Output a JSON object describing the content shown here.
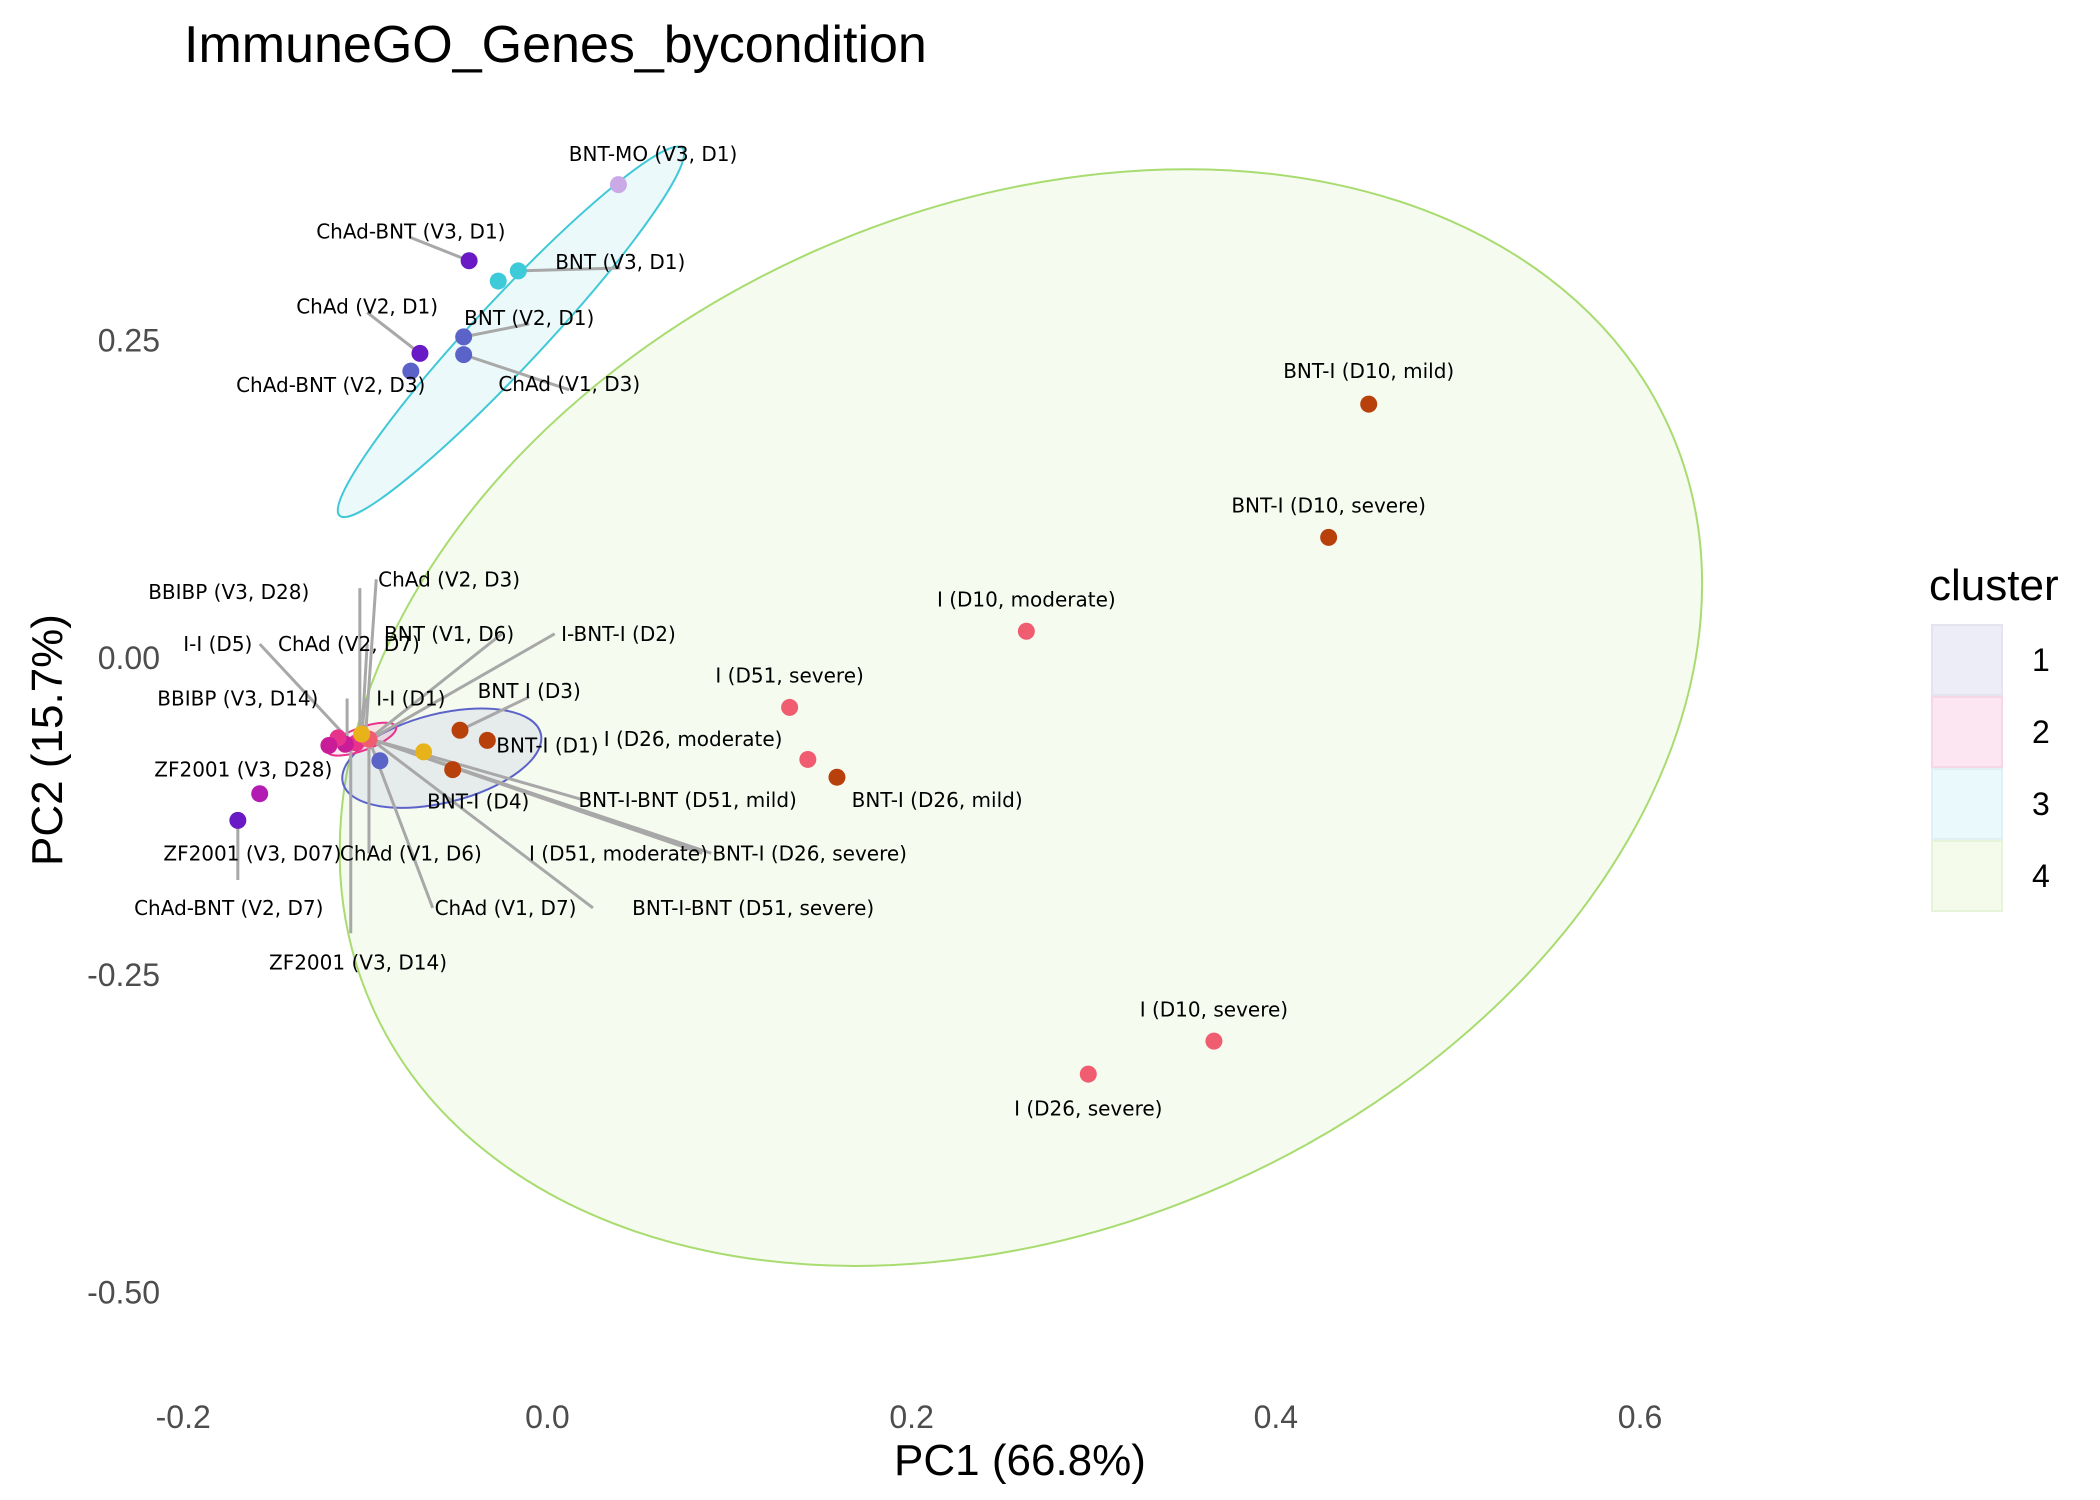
{
  "chart_data": {
    "type": "scatter",
    "title": "ImmuneGO_Genes_bycondition",
    "xlabel": "PC1 (66.8%)",
    "ylabel": "PC2 (15.7%)",
    "xlim": [
      -0.21,
      0.74
    ],
    "ylim": [
      -0.573,
      0.42
    ],
    "x_ticks": [
      -0.2,
      0.0,
      0.2,
      0.4,
      0.6
    ],
    "x_tick_labels": [
      "-0.2",
      "0.0",
      "0.2",
      "0.4",
      "0.6"
    ],
    "y_ticks": [
      -0.5,
      -0.25,
      0.0,
      0.25
    ],
    "y_tick_labels": [
      "-0.50",
      "-0.25",
      "0.00",
      "0.25"
    ],
    "grid": false,
    "legend": {
      "title": "cluster",
      "placement": "right",
      "entries": [
        {
          "label": "1",
          "fill": "#EDEDF7",
          "border": "#E4E4F0"
        },
        {
          "label": "2",
          "fill": "#FCE6F1",
          "border": "#F5D7E6"
        },
        {
          "label": "3",
          "fill": "#EAF9FB",
          "border": "#DFF1F5"
        },
        {
          "label": "4",
          "fill": "#F4FBEB",
          "border": "#E8F3DB"
        }
      ]
    },
    "ellipses": [
      {
        "cluster": "1",
        "cx": -0.058,
        "cy": -0.079,
        "rx": 0.056,
        "ry": 0.035,
        "angle_deg": 14,
        "stroke": "#5B63C9",
        "fill": "#5B63C9"
      },
      {
        "cluster": "2",
        "cx": -0.102,
        "cy": -0.064,
        "rx": 0.02,
        "ry": 0.009,
        "angle_deg": 20,
        "stroke": "#E8338C",
        "fill": "#E8338C"
      },
      {
        "cluster": "3",
        "cx": -0.02,
        "cy": 0.257,
        "rx": 0.138,
        "ry": 0.027,
        "angle_deg": 47,
        "stroke": "#3FC8D8",
        "fill": "#3FC8D8"
      },
      {
        "cluster": "4",
        "cx": 0.26,
        "cy": -0.047,
        "rx": 0.39,
        "ry": 0.402,
        "angle_deg": 24,
        "stroke": "#A8DC70",
        "fill": "#A8DC70"
      }
    ],
    "points": [
      {
        "label": "BNT-MO (V3, D1)",
        "x": 0.039,
        "y": 0.373,
        "color": "#C9A9E6",
        "lx": 0.058,
        "ly": 0.397
      },
      {
        "label": "ChAd-BNT (V3, D1)",
        "x": -0.043,
        "y": 0.313,
        "color": "#6A1AC4",
        "lx": -0.075,
        "ly": 0.336
      },
      {
        "label": "BNT (V3, D1)",
        "x": -0.016,
        "y": 0.305,
        "color": "#3DCAD9",
        "lx": 0.04,
        "ly": 0.312
      },
      {
        "label": "",
        "x": -0.027,
        "y": 0.297,
        "color": "#3DCAD9"
      },
      {
        "label": "ChAd (V2, D1)",
        "x": -0.07,
        "y": 0.24,
        "color": "#6A1AC4",
        "lx": -0.099,
        "ly": 0.277
      },
      {
        "label": "BNT (V2, D1)",
        "x": -0.046,
        "y": 0.253,
        "color": "#5B63C9",
        "lx": -0.01,
        "ly": 0.268
      },
      {
        "label": "ChAd-BNT (V2, D3)",
        "x": -0.075,
        "y": 0.226,
        "color": "#5B63C9",
        "lx": -0.119,
        "ly": 0.215,
        "noline": true
      },
      {
        "label": "ChAd (V1, D3)",
        "x": -0.046,
        "y": 0.239,
        "color": "#5B63C9",
        "lx": 0.012,
        "ly": 0.216
      },
      {
        "label": "BNT-I (D10, mild)",
        "x": 0.451,
        "y": 0.2,
        "color": "#B8400A",
        "lx": 0.451,
        "ly": 0.226
      },
      {
        "label": "BNT-I (D10, severe)",
        "x": 0.429,
        "y": 0.095,
        "color": "#B8400A",
        "lx": 0.429,
        "ly": 0.12
      },
      {
        "label": "I (D10, moderate)",
        "x": 0.263,
        "y": 0.021,
        "color": "#F05C70",
        "lx": 0.263,
        "ly": 0.046
      },
      {
        "label": "I (D51, severe)",
        "x": 0.133,
        "y": -0.039,
        "color": "#F05C70",
        "lx": 0.133,
        "ly": -0.014
      },
      {
        "label": "I (D26, moderate)",
        "x": 0.143,
        "y": -0.08,
        "color": "#F05C70",
        "lx": 0.08,
        "ly": -0.064,
        "noline": true
      },
      {
        "label": "BNT-I (D26, mild)",
        "x": 0.159,
        "y": -0.094,
        "color": "#B8400A",
        "lx": 0.214,
        "ly": -0.112,
        "noline": true
      },
      {
        "label": "I (D10, severe)",
        "x": 0.366,
        "y": -0.302,
        "color": "#F05C70",
        "lx": 0.366,
        "ly": -0.277
      },
      {
        "label": "I (D26, severe)",
        "x": 0.297,
        "y": -0.328,
        "color": "#F05C70",
        "lx": 0.297,
        "ly": -0.355
      },
      {
        "label": "BNT I (D3)",
        "x": -0.048,
        "y": -0.057,
        "color": "#B8400A",
        "lx": -0.01,
        "ly": -0.026
      },
      {
        "label": "BNT-I (D1)",
        "x": -0.033,
        "y": -0.065,
        "color": "#B8400A",
        "lx": 0.0,
        "ly": -0.069,
        "noline": true
      },
      {
        "label": "BNT-I (D4)",
        "x": -0.052,
        "y": -0.088,
        "color": "#B8400A",
        "lx": -0.038,
        "ly": -0.113
      },
      {
        "label": "",
        "x": -0.068,
        "y": -0.074,
        "color": "#E8B31A"
      },
      {
        "label": "",
        "x": -0.092,
        "y": -0.081,
        "color": "#5B63C9"
      },
      {
        "label": "",
        "x": -0.105,
        "y": -0.067,
        "color": "#E8338C"
      },
      {
        "label": "",
        "x": -0.111,
        "y": -0.068,
        "color": "#C81C99"
      },
      {
        "label": "",
        "x": -0.115,
        "y": -0.063,
        "color": "#E8338C"
      },
      {
        "label": "",
        "x": -0.12,
        "y": -0.069,
        "color": "#C81C99"
      },
      {
        "label": "",
        "x": -0.098,
        "y": -0.064,
        "color": "#F05C70"
      },
      {
        "label": "",
        "x": -0.102,
        "y": -0.06,
        "color": "#E8B31A"
      },
      {
        "label": "ZF2001 (V3, D28)",
        "x": -0.158,
        "y": -0.107,
        "color": "#B31CB3",
        "lx": -0.167,
        "ly": -0.088,
        "noline": true
      },
      {
        "label": "",
        "x": -0.17,
        "y": -0.128,
        "color": "#6A1AC4"
      }
    ],
    "label_callouts": [
      {
        "label": "BBIBP (V3, D28)",
        "lx": -0.175,
        "ly": 0.052,
        "ax": -0.103,
        "ay": -0.064,
        "ex": -0.103,
        "ey": 0.055
      },
      {
        "label": "ChAd (V2, D3)",
        "lx": -0.054,
        "ly": 0.062,
        "ax": -0.1,
        "ay": -0.064,
        "ex": -0.094,
        "ey": 0.062
      },
      {
        "label": "I-I (D5)",
        "lx": -0.181,
        "ly": 0.011,
        "ax": -0.108,
        "ay": -0.066,
        "ex": -0.158,
        "ey": 0.011
      },
      {
        "label": "ChAd (V2, D7)",
        "lx": -0.109,
        "ly": 0.011,
        "ax": -0.102,
        "ay": -0.064,
        "ex": -0.099,
        "ey": 0.011
      },
      {
        "label": "BNT (V1, D6)",
        "lx": -0.054,
        "ly": 0.019,
        "ax": -0.098,
        "ay": -0.064,
        "ex": -0.025,
        "ey": 0.019
      },
      {
        "label": "I-BNT-I (D2)",
        "lx": 0.039,
        "ly": 0.019,
        "ax": -0.097,
        "ay": -0.064,
        "ex": 0.004,
        "ey": 0.019
      },
      {
        "label": "BBIBP (V3, D14)",
        "lx": -0.17,
        "ly": -0.032,
        "ax": -0.11,
        "ay": -0.066,
        "ex": -0.11,
        "ey": -0.032
      },
      {
        "label": "I-I (D1)",
        "lx": -0.075,
        "ly": -0.032,
        "ax": -0.102,
        "ay": -0.06,
        "ex": -0.1,
        "ey": -0.032
      },
      {
        "label": "ZF2001 (V3, D07)",
        "lx": -0.162,
        "ly": -0.154,
        "ax": -0.17,
        "ay": -0.128,
        "ex": -0.17,
        "ey": -0.128
      },
      {
        "label": "ChAd (V1, D6)",
        "lx": -0.075,
        "ly": -0.154,
        "ax": -0.098,
        "ay": -0.064,
        "ex": -0.098,
        "ey": -0.154
      },
      {
        "label": "I (D51, moderate)",
        "lx": 0.039,
        "ly": -0.154,
        "ax": -0.097,
        "ay": -0.064,
        "ex": 0.085,
        "ey": -0.154
      },
      {
        "label": "BNT-I (D26, severe)",
        "lx": 0.144,
        "ly": -0.154,
        "ax": -0.097,
        "ay": -0.064,
        "ex": 0.09,
        "ey": -0.154
      },
      {
        "label": "BNT-I-BNT (D51, mild)",
        "lx": 0.077,
        "ly": -0.112,
        "ax": -0.097,
        "ay": -0.064,
        "ex": 0.02,
        "ey": -0.112
      },
      {
        "label": "ChAd-BNT (V2, D7)",
        "lx": -0.175,
        "ly": -0.197,
        "ax": -0.17,
        "ay": -0.128,
        "ex": -0.17,
        "ey": -0.175
      },
      {
        "label": "ChAd (V1, D7)",
        "lx": -0.023,
        "ly": -0.197,
        "ax": -0.098,
        "ay": -0.064,
        "ex": -0.063,
        "ey": -0.197
      },
      {
        "label": "BNT-I-BNT (D51, severe)",
        "lx": 0.113,
        "ly": -0.197,
        "ax": -0.097,
        "ay": -0.064,
        "ex": 0.025,
        "ey": -0.197
      },
      {
        "label": "ZF2001 (V3, D14)",
        "lx": -0.104,
        "ly": -0.24,
        "ax": -0.108,
        "ay": -0.066,
        "ex": -0.108,
        "ey": -0.217
      }
    ]
  }
}
